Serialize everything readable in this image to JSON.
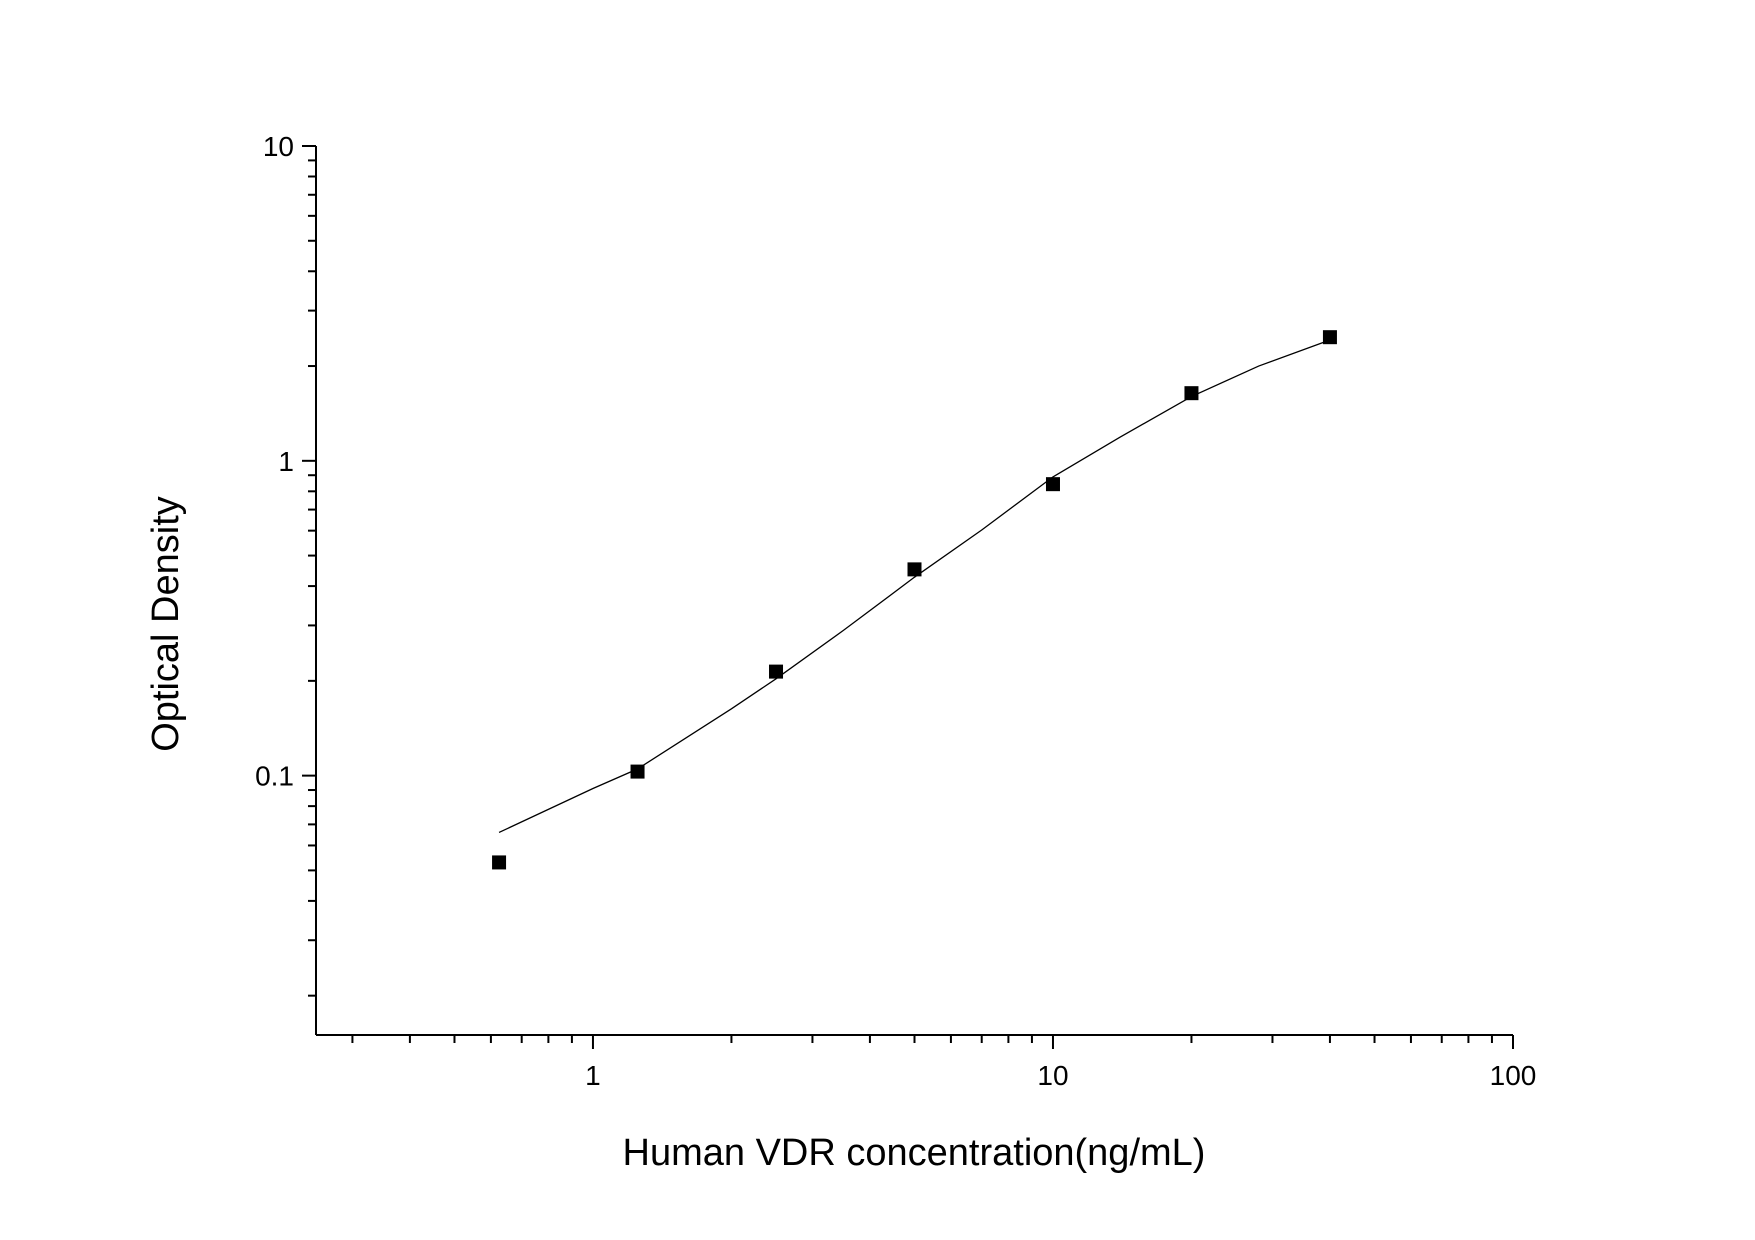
{
  "chart_data": {
    "type": "scatter",
    "title": "",
    "xlabel": "Human VDR concentration(ng/mL)",
    "ylabel": "Optical Density",
    "x_scale": "log",
    "y_scale": "log",
    "xlim": [
      0.25,
      100
    ],
    "ylim": [
      0.015,
      10
    ],
    "x_ticks": [
      {
        "value": 1,
        "label": "1"
      },
      {
        "value": 10,
        "label": "10"
      },
      {
        "value": 100,
        "label": "100"
      }
    ],
    "y_ticks": [
      {
        "value": 0.1,
        "label": "0.1"
      },
      {
        "value": 1,
        "label": "1"
      },
      {
        "value": 10,
        "label": "10"
      }
    ],
    "grid": false,
    "legend": "none",
    "points": [
      {
        "x": 0.625,
        "y": 0.053
      },
      {
        "x": 1.25,
        "y": 0.103
      },
      {
        "x": 2.5,
        "y": 0.214
      },
      {
        "x": 5,
        "y": 0.452
      },
      {
        "x": 10,
        "y": 0.843
      },
      {
        "x": 20,
        "y": 1.64
      },
      {
        "x": 40,
        "y": 2.47
      }
    ],
    "fit_curve": [
      {
        "x": 0.625,
        "y": 0.066
      },
      {
        "x": 1.0,
        "y": 0.091
      },
      {
        "x": 1.25,
        "y": 0.105
      },
      {
        "x": 2.0,
        "y": 0.163
      },
      {
        "x": 2.5,
        "y": 0.203
      },
      {
        "x": 3.5,
        "y": 0.289
      },
      {
        "x": 5,
        "y": 0.427
      },
      {
        "x": 7,
        "y": 0.603
      },
      {
        "x": 10,
        "y": 0.889
      },
      {
        "x": 14,
        "y": 1.19
      },
      {
        "x": 20,
        "y": 1.6
      },
      {
        "x": 28,
        "y": 2.0
      },
      {
        "x": 40,
        "y": 2.42
      }
    ],
    "colors": {
      "marker": "#000000",
      "curve": "#000000",
      "axis": "#000000"
    }
  }
}
